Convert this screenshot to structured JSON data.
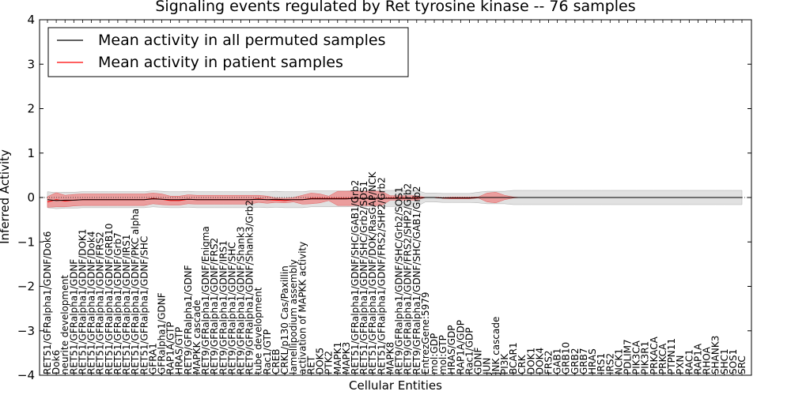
{
  "chart_data": {
    "type": "line",
    "title": "Signaling events regulated by Ret tyrosine kinase -- 76 samples",
    "xlabel": "Cellular Entities",
    "ylabel": "Inferred Activity",
    "ylim": [
      -4,
      4
    ],
    "yticks": [
      "−4",
      "−3",
      "−2",
      "−1",
      "0",
      "1",
      "2",
      "3",
      "4"
    ],
    "ytick_values": [
      -4,
      -3,
      -2,
      -1,
      0,
      1,
      2,
      3,
      4
    ],
    "legend_position": "top-left",
    "legend": [
      {
        "label": "Mean activity in all permuted samples",
        "color": "#000000"
      },
      {
        "label": "Mean activity in patient samples",
        "color": "#ff0000"
      }
    ],
    "colors": {
      "patient": "#ff0000",
      "patient_band": "#f08080",
      "permuted": "#000000",
      "permuted_band": "#c8c8c8"
    },
    "categories": [
      "RET51/GFRalpha1/GDNF/Dok6",
      "Dok6",
      "neurite development",
      "RET51/GFRalpha1/GDNF",
      "RET51/GFRalpha1/GDNF/DOK1",
      "RET51/GFRalpha1/GDNF/Dok4",
      "RET51/GFRalpha1/GDNF/FRS2",
      "RET51/GFRalpha1/GDNF/GRB10",
      "RET51/GFRalpha1/GDNF/Grb7",
      "RET51/GFRalpha1/GDNF/IRS1",
      "RET51/GFRalpha1/GDNF/PKC alpha",
      "RET51/GFRalpha1/GDNF/SHC",
      "GFRA1",
      "GFRalpha1/GDNF",
      "RAP1A/GTP",
      "HRAS/GTP",
      "RET9/GFRalpha1/GDNF",
      "MAPKK cascade",
      "RET9/GFRalpha1/GDNF/Enigma",
      "RET9/GFRalpha1/GDNF/FRS2",
      "RET9/GFRalpha1/GDNF/IRS1",
      "RET9/GFRalpha1/GDNF/SHC",
      "RET9/GFRalpha1/GDNF/Shank3",
      "RET9/GFRalpha1/GDNF/Shank3/Grb2",
      "tube development",
      "Rac1/GTP",
      "CREB",
      "CRKL/p130 Cas/Paxillin",
      "lamellipodium assembly",
      "activation of MAPKK activity",
      "RET",
      "DOK5",
      "PTK2",
      "MAPK1",
      "MAPK3",
      "RET51/GFRalpha1/GDNF/SHC/GAB1/Grb2",
      "RET51/GFRalpha1/GDNF/SHC/Grb2/SOS1",
      "RET51/GFRalpha1/GDNF/DOK/RasGAP/NCK",
      "RET51/GFRalpha1/GDNF/FRS2/SHP2/Grb2",
      "MAPK8",
      "RET9/GFRalpha1/GDNF/SHC/Grb2/SOS1",
      "RET9/GFRalpha1/GDNF/FRS2/SHP2/Grb2",
      "RET9/GFRalpha1/GDNF/SHC/GAB1/Grb2",
      "EntrezGene:5979",
      "mol:GDP",
      "mol:GTP",
      "HRAS/GDP",
      "RAP1A/GDP",
      "Rac1/GDP",
      "GDNF",
      "JUN",
      "JNK cascade",
      "PI3K",
      "BCAR1",
      "CRK",
      "DOK1",
      "DOK4",
      "FRS2",
      "GAB1",
      "GRB10",
      "GRB2",
      "GRB7",
      "HRAS",
      "IRS1",
      "IRS2",
      "NCK1",
      "PDLIM7",
      "PIK3CA",
      "PIK3R1",
      "PRKACA",
      "PRKCA",
      "PTPN11",
      "PXN",
      "RAC1",
      "RAP1A",
      "RHOA",
      "SHANK3",
      "SHC1",
      "SOS1",
      "SRC"
    ],
    "series": [
      {
        "name": "Mean activity in all permuted samples",
        "values": [
          -0.05,
          -0.07,
          -0.06,
          -0.06,
          -0.05,
          -0.05,
          -0.05,
          -0.05,
          -0.05,
          -0.05,
          -0.05,
          -0.05,
          -0.03,
          -0.04,
          -0.05,
          -0.05,
          -0.04,
          -0.05,
          -0.05,
          -0.05,
          -0.05,
          -0.05,
          -0.05,
          -0.05,
          -0.04,
          -0.05,
          -0.04,
          -0.05,
          -0.05,
          -0.05,
          -0.03,
          -0.03,
          -0.03,
          -0.03,
          -0.03,
          -0.02,
          -0.02,
          -0.02,
          -0.02,
          -0.02,
          -0.02,
          -0.02,
          -0.02,
          0.0,
          0.0,
          -0.01,
          -0.01,
          -0.01,
          -0.01,
          0.0,
          0.0,
          0.0,
          0.0,
          0.0,
          0.0,
          0.0,
          0.0,
          0.0,
          0.0,
          0.0,
          0.0,
          0.0,
          0.0,
          0.0,
          0.0,
          0.0,
          0.0,
          0.0,
          0.0,
          0.0,
          0.0,
          0.0,
          0.0,
          0.0,
          0.0,
          0.0,
          0.0,
          0.0,
          0.0,
          0.0
        ],
        "band": [
          0.18,
          0.18,
          0.18,
          0.18,
          0.18,
          0.18,
          0.18,
          0.18,
          0.18,
          0.18,
          0.18,
          0.18,
          0.18,
          0.18,
          0.18,
          0.18,
          0.18,
          0.18,
          0.18,
          0.18,
          0.18,
          0.18,
          0.18,
          0.18,
          0.18,
          0.18,
          0.18,
          0.18,
          0.18,
          0.18,
          0.18,
          0.18,
          0.18,
          0.18,
          0.18,
          0.18,
          0.18,
          0.18,
          0.18,
          0.18,
          0.18,
          0.18,
          0.18,
          0.1,
          0.1,
          0.1,
          0.1,
          0.1,
          0.1,
          0.12,
          0.14,
          0.14,
          0.14,
          0.16,
          0.16,
          0.16,
          0.16,
          0.16,
          0.16,
          0.16,
          0.16,
          0.16,
          0.16,
          0.16,
          0.16,
          0.16,
          0.16,
          0.16,
          0.16,
          0.16,
          0.16,
          0.16,
          0.16,
          0.16,
          0.16,
          0.16,
          0.16,
          0.16,
          0.16,
          0.16
        ]
      },
      {
        "name": "Mean activity in patient samples",
        "values": [
          -0.1,
          -0.05,
          -0.08,
          -0.06,
          -0.05,
          -0.05,
          -0.05,
          -0.05,
          -0.05,
          -0.05,
          -0.05,
          -0.05,
          -0.02,
          -0.04,
          -0.07,
          -0.07,
          -0.04,
          -0.05,
          -0.05,
          -0.05,
          -0.05,
          -0.05,
          -0.05,
          -0.05,
          -0.03,
          -0.05,
          -0.06,
          -0.07,
          -0.05,
          -0.05,
          -0.02,
          -0.02,
          -0.02,
          -0.02,
          -0.02,
          -0.02,
          -0.02,
          -0.02,
          -0.02,
          -0.01,
          -0.01,
          -0.01,
          -0.01,
          0.0,
          0.0,
          -0.01,
          -0.01,
          -0.01,
          -0.01,
          0.0,
          0.0,
          0.0,
          0.0,
          0.0,
          0.0,
          0.0,
          0.0,
          0.0,
          0.0,
          0.0,
          0.0,
          0.0,
          0.0,
          0.0,
          0.0,
          0.0,
          0.0,
          0.0,
          0.0,
          0.0,
          0.0,
          0.0,
          0.0,
          0.0,
          0.0,
          0.0,
          0.0,
          0.0,
          0.0,
          0.0
        ],
        "band": [
          0.12,
          0.16,
          0.13,
          0.13,
          0.13,
          0.13,
          0.13,
          0.13,
          0.13,
          0.13,
          0.13,
          0.13,
          0.12,
          0.12,
          0.1,
          0.1,
          0.1,
          0.1,
          0.1,
          0.1,
          0.1,
          0.1,
          0.1,
          0.1,
          0.08,
          0.08,
          0.05,
          0.05,
          0.05,
          0.1,
          0.12,
          0.1,
          0.05,
          0.16,
          0.16,
          0.16,
          0.16,
          0.16,
          0.16,
          0.05,
          0.05,
          0.05,
          0.05,
          0.0,
          0.0,
          0.01,
          0.02,
          0.02,
          0.02,
          0.01,
          0.1,
          0.12,
          0.05,
          0.01,
          0.0,
          0.0,
          0.0,
          0.0,
          0.0,
          0.0,
          0.0,
          0.0,
          0.0,
          0.0,
          0.0,
          0.0,
          0.0,
          0.0,
          0.0,
          0.0,
          0.0,
          0.0,
          0.0,
          0.0,
          0.0,
          0.0,
          0.0,
          0.0,
          0.0,
          0.0
        ]
      }
    ]
  }
}
